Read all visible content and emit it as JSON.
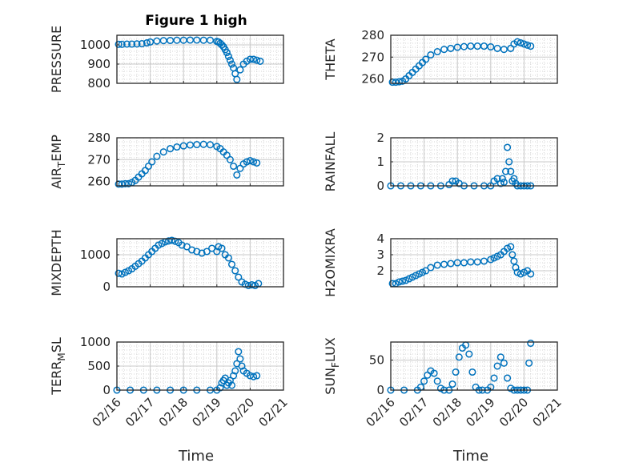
{
  "figure": {
    "title": "Figure 1 high",
    "xlabel": "Time",
    "x_ticks": [
      "02/16",
      "02/17",
      "02/18",
      "02/19",
      "02/20",
      "02/21"
    ],
    "marker_color": "#0072BD"
  },
  "chart_data": [
    {
      "type": "scatter",
      "ylabel": "PRESSURE",
      "ylim": [
        800,
        1050
      ],
      "yticks": [
        "800",
        "900",
        "1000"
      ],
      "grid": true,
      "x": [
        16.05,
        16.15,
        16.3,
        16.45,
        16.6,
        16.75,
        16.9,
        17.0,
        17.2,
        17.4,
        17.6,
        17.8,
        18.0,
        18.2,
        18.4,
        18.6,
        18.8,
        19.0,
        19.05,
        19.1,
        19.15,
        19.2,
        19.25,
        19.3,
        19.35,
        19.4,
        19.45,
        19.5,
        19.55,
        19.6,
        19.7,
        19.8,
        19.9,
        20.0,
        20.1,
        20.2,
        20.3
      ],
      "y": [
        1003,
        1003,
        1004,
        1004,
        1005,
        1006,
        1010,
        1015,
        1020,
        1022,
        1023,
        1024,
        1024,
        1025,
        1025,
        1024,
        1024,
        1018,
        1015,
        1008,
        1000,
        990,
        975,
        960,
        940,
        920,
        900,
        880,
        850,
        820,
        870,
        900,
        915,
        925,
        925,
        920,
        915
      ]
    },
    {
      "type": "scatter",
      "ylabel": "THETA",
      "ylim": [
        258,
        280
      ],
      "yticks": [
        "260",
        "270",
        "280"
      ],
      "grid": true,
      "x": [
        16.05,
        16.15,
        16.25,
        16.35,
        16.45,
        16.55,
        16.65,
        16.75,
        16.85,
        16.95,
        17.05,
        17.2,
        17.4,
        17.6,
        17.8,
        18.0,
        18.2,
        18.4,
        18.6,
        18.8,
        19.0,
        19.2,
        19.4,
        19.6,
        19.7,
        19.8,
        19.9,
        20.0,
        20.1,
        20.2
      ],
      "y": [
        258.5,
        258.5,
        258.7,
        259.0,
        260.0,
        261.5,
        263.0,
        264.5,
        266.0,
        267.5,
        269.0,
        271.0,
        272.5,
        273.5,
        274.0,
        274.5,
        274.8,
        275.0,
        275.0,
        275.0,
        274.7,
        274.0,
        273.5,
        274.0,
        276.0,
        277.0,
        276.5,
        276.0,
        275.5,
        275.0
      ]
    },
    {
      "type": "scatter",
      "ylabel": "AIR_TEMP",
      "ylim": [
        258,
        280
      ],
      "yticks": [
        "260",
        "270",
        "280"
      ],
      "grid": true,
      "x": [
        16.05,
        16.15,
        16.25,
        16.35,
        16.45,
        16.55,
        16.65,
        16.75,
        16.85,
        16.95,
        17.05,
        17.2,
        17.4,
        17.6,
        17.8,
        18.0,
        18.2,
        18.4,
        18.6,
        18.8,
        19.0,
        19.1,
        19.2,
        19.3,
        19.4,
        19.5,
        19.6,
        19.7,
        19.8,
        19.9,
        20.0,
        20.1,
        20.2
      ],
      "y": [
        258.8,
        258.8,
        259.0,
        259.0,
        259.5,
        260.5,
        262.0,
        263.5,
        265.0,
        267.0,
        269.0,
        271.5,
        273.5,
        275.0,
        275.8,
        276.3,
        276.7,
        276.9,
        277.0,
        276.8,
        276.0,
        275.0,
        273.5,
        272.0,
        270.0,
        267.0,
        263.0,
        266.0,
        268.0,
        269.0,
        269.5,
        269.0,
        268.5
      ]
    },
    {
      "type": "scatter",
      "ylabel": "RAINFALL",
      "ylim": [
        0,
        2
      ],
      "yticks": [
        "0",
        "1",
        "2"
      ],
      "grid": true,
      "x": [
        16.0,
        16.3,
        16.6,
        16.9,
        17.2,
        17.5,
        17.75,
        17.85,
        17.95,
        18.05,
        18.2,
        18.5,
        18.8,
        19.0,
        19.1,
        19.2,
        19.3,
        19.35,
        19.4,
        19.45,
        19.5,
        19.55,
        19.6,
        19.65,
        19.7,
        19.75,
        19.8,
        19.9,
        20.0,
        20.1,
        20.2
      ],
      "y": [
        0,
        0,
        0,
        0,
        0,
        0,
        0.05,
        0.2,
        0.2,
        0.1,
        0,
        0,
        0,
        0,
        0.2,
        0.3,
        0.1,
        0.3,
        0.15,
        0.6,
        1.6,
        1.0,
        0.6,
        0.2,
        0.3,
        0.1,
        0,
        0,
        0,
        0,
        0
      ]
    },
    {
      "type": "scatter",
      "ylabel": "MIXDEPTH",
      "ylim": [
        0,
        1500
      ],
      "yticks": [
        "0",
        "1000"
      ],
      "grid": true,
      "x": [
        16.05,
        16.15,
        16.25,
        16.35,
        16.45,
        16.55,
        16.65,
        16.75,
        16.85,
        16.95,
        17.05,
        17.15,
        17.25,
        17.35,
        17.45,
        17.55,
        17.65,
        17.75,
        17.85,
        17.95,
        18.1,
        18.25,
        18.4,
        18.55,
        18.7,
        18.85,
        19.0,
        19.05,
        19.15,
        19.25,
        19.35,
        19.45,
        19.55,
        19.65,
        19.75,
        19.85,
        19.95,
        20.05,
        20.15,
        20.25
      ],
      "y": [
        420,
        400,
        450,
        500,
        560,
        640,
        720,
        800,
        900,
        1000,
        1100,
        1200,
        1300,
        1350,
        1400,
        1430,
        1450,
        1420,
        1380,
        1300,
        1250,
        1150,
        1100,
        1050,
        1100,
        1200,
        1100,
        1250,
        1200,
        1000,
        900,
        700,
        500,
        300,
        150,
        80,
        40,
        60,
        40,
        100
      ]
    },
    {
      "type": "scatter",
      "ylabel": "H2OMIXRA",
      "ylim": [
        1,
        4
      ],
      "yticks": [
        "2",
        "3",
        "4"
      ],
      "grid": true,
      "x": [
        16.05,
        16.15,
        16.25,
        16.35,
        16.45,
        16.55,
        16.65,
        16.75,
        16.85,
        16.95,
        17.05,
        17.2,
        17.4,
        17.6,
        17.8,
        18.0,
        18.2,
        18.4,
        18.6,
        18.8,
        19.0,
        19.1,
        19.2,
        19.3,
        19.4,
        19.5,
        19.6,
        19.65,
        19.7,
        19.75,
        19.8,
        19.9,
        20.0,
        20.1,
        20.2
      ],
      "y": [
        1.2,
        1.2,
        1.3,
        1.35,
        1.4,
        1.5,
        1.6,
        1.7,
        1.8,
        1.9,
        2.0,
        2.2,
        2.35,
        2.4,
        2.45,
        2.5,
        2.5,
        2.55,
        2.55,
        2.6,
        2.7,
        2.8,
        2.9,
        3.0,
        3.2,
        3.4,
        3.5,
        3.0,
        2.6,
        2.2,
        1.9,
        1.8,
        1.9,
        2.0,
        1.8
      ]
    },
    {
      "type": "scatter",
      "ylabel": "TERR_MSL",
      "ylim": [
        0,
        1000
      ],
      "yticks": [
        "0",
        "500",
        "1000"
      ],
      "grid": true,
      "x": [
        16.0,
        16.4,
        16.8,
        17.2,
        17.6,
        18.0,
        18.4,
        18.8,
        19.0,
        19.1,
        19.15,
        19.2,
        19.25,
        19.3,
        19.35,
        19.4,
        19.45,
        19.5,
        19.55,
        19.6,
        19.65,
        19.7,
        19.75,
        19.8,
        19.9,
        20.0,
        20.1,
        20.2
      ],
      "y": [
        0,
        0,
        0,
        0,
        0,
        0,
        0,
        0,
        0,
        50,
        150,
        200,
        250,
        100,
        150,
        200,
        100,
        300,
        400,
        550,
        800,
        650,
        500,
        400,
        350,
        300,
        280,
        300
      ]
    },
    {
      "type": "scatter",
      "ylabel": "SUN_FLUX",
      "ylim": [
        0,
        80
      ],
      "yticks": [
        "0",
        "50"
      ],
      "grid": true,
      "x": [
        16.0,
        16.4,
        16.8,
        16.9,
        17.0,
        17.1,
        17.2,
        17.3,
        17.4,
        17.5,
        17.6,
        17.75,
        17.85,
        17.95,
        18.05,
        18.15,
        18.25,
        18.35,
        18.45,
        18.55,
        18.65,
        18.75,
        18.9,
        19.0,
        19.1,
        19.2,
        19.3,
        19.4,
        19.5,
        19.6,
        19.7,
        19.8,
        19.9,
        20.0,
        20.1,
        20.15,
        20.2
      ],
      "y": [
        0,
        0,
        0,
        5,
        15,
        25,
        32,
        28,
        15,
        3,
        0,
        0,
        10,
        30,
        55,
        70,
        75,
        60,
        30,
        5,
        0,
        0,
        0,
        5,
        20,
        40,
        55,
        45,
        20,
        3,
        0,
        0,
        0,
        0,
        0,
        45,
        78
      ]
    }
  ]
}
